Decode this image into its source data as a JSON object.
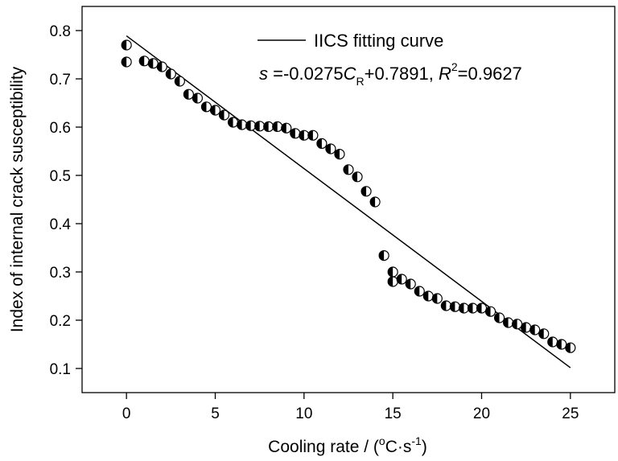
{
  "chart_data": {
    "type": "scatter",
    "xlabel": "Cooling rate / (",
    "xlabel_unit": {
      "sup1": "o",
      "mid": "C·s",
      "sup2": "-1",
      "end": ")"
    },
    "ylabel": "Index of internal crack susceptibility",
    "xlim": [
      -2.5,
      27.5
    ],
    "ylim": [
      0.05,
      0.85
    ],
    "xticks": [
      0,
      5,
      10,
      15,
      20,
      25
    ],
    "yticks": [
      0.1,
      0.2,
      0.3,
      0.4,
      0.5,
      0.6,
      0.7,
      0.8
    ],
    "xtick_labels": [
      "0",
      "5",
      "10",
      "15",
      "20",
      "25"
    ],
    "ytick_labels": [
      "0.1",
      "0.2",
      "0.3",
      "0.4",
      "0.5",
      "0.6",
      "0.7",
      "0.8"
    ],
    "legend": {
      "label": "IICS fitting curve",
      "equation": {
        "s": "s",
        "part1": " =-0.0275",
        "C": "C",
        "sub_R": "R",
        "part2": "+0.7891, ",
        "R": "R",
        "sup_2": "2",
        "part3": "=0.9627"
      }
    },
    "fit": {
      "slope": -0.0275,
      "intercept": 0.7891,
      "x_range": [
        0,
        25
      ]
    },
    "series": [
      {
        "x": [
          0,
          0,
          1,
          1.5,
          2,
          2.5,
          3,
          3.5,
          4,
          4.5,
          5,
          5.5,
          6,
          6.5,
          7,
          7.5,
          8,
          8.5,
          9,
          9.5,
          10,
          10.5,
          11,
          11.5,
          12,
          12.5,
          13,
          13.5,
          14,
          14.5,
          15,
          15,
          15.5,
          16,
          16.5,
          17,
          17.5,
          18,
          18.5,
          19,
          19.5,
          20,
          20.5,
          21,
          21.5,
          22,
          22.5,
          23,
          23.5,
          24,
          24.5,
          25
        ],
        "y": [
          0.77,
          0.735,
          0.737,
          0.732,
          0.725,
          0.71,
          0.695,
          0.668,
          0.66,
          0.642,
          0.635,
          0.625,
          0.61,
          0.605,
          0.603,
          0.602,
          0.601,
          0.601,
          0.598,
          0.587,
          0.583,
          0.583,
          0.566,
          0.555,
          0.544,
          0.512,
          0.497,
          0.467,
          0.445,
          0.334,
          0.3,
          0.28,
          0.285,
          0.275,
          0.26,
          0.25,
          0.245,
          0.23,
          0.228,
          0.225,
          0.225,
          0.225,
          0.218,
          0.205,
          0.195,
          0.192,
          0.185,
          0.18,
          0.172,
          0.155,
          0.15,
          0.143
        ]
      }
    ]
  }
}
